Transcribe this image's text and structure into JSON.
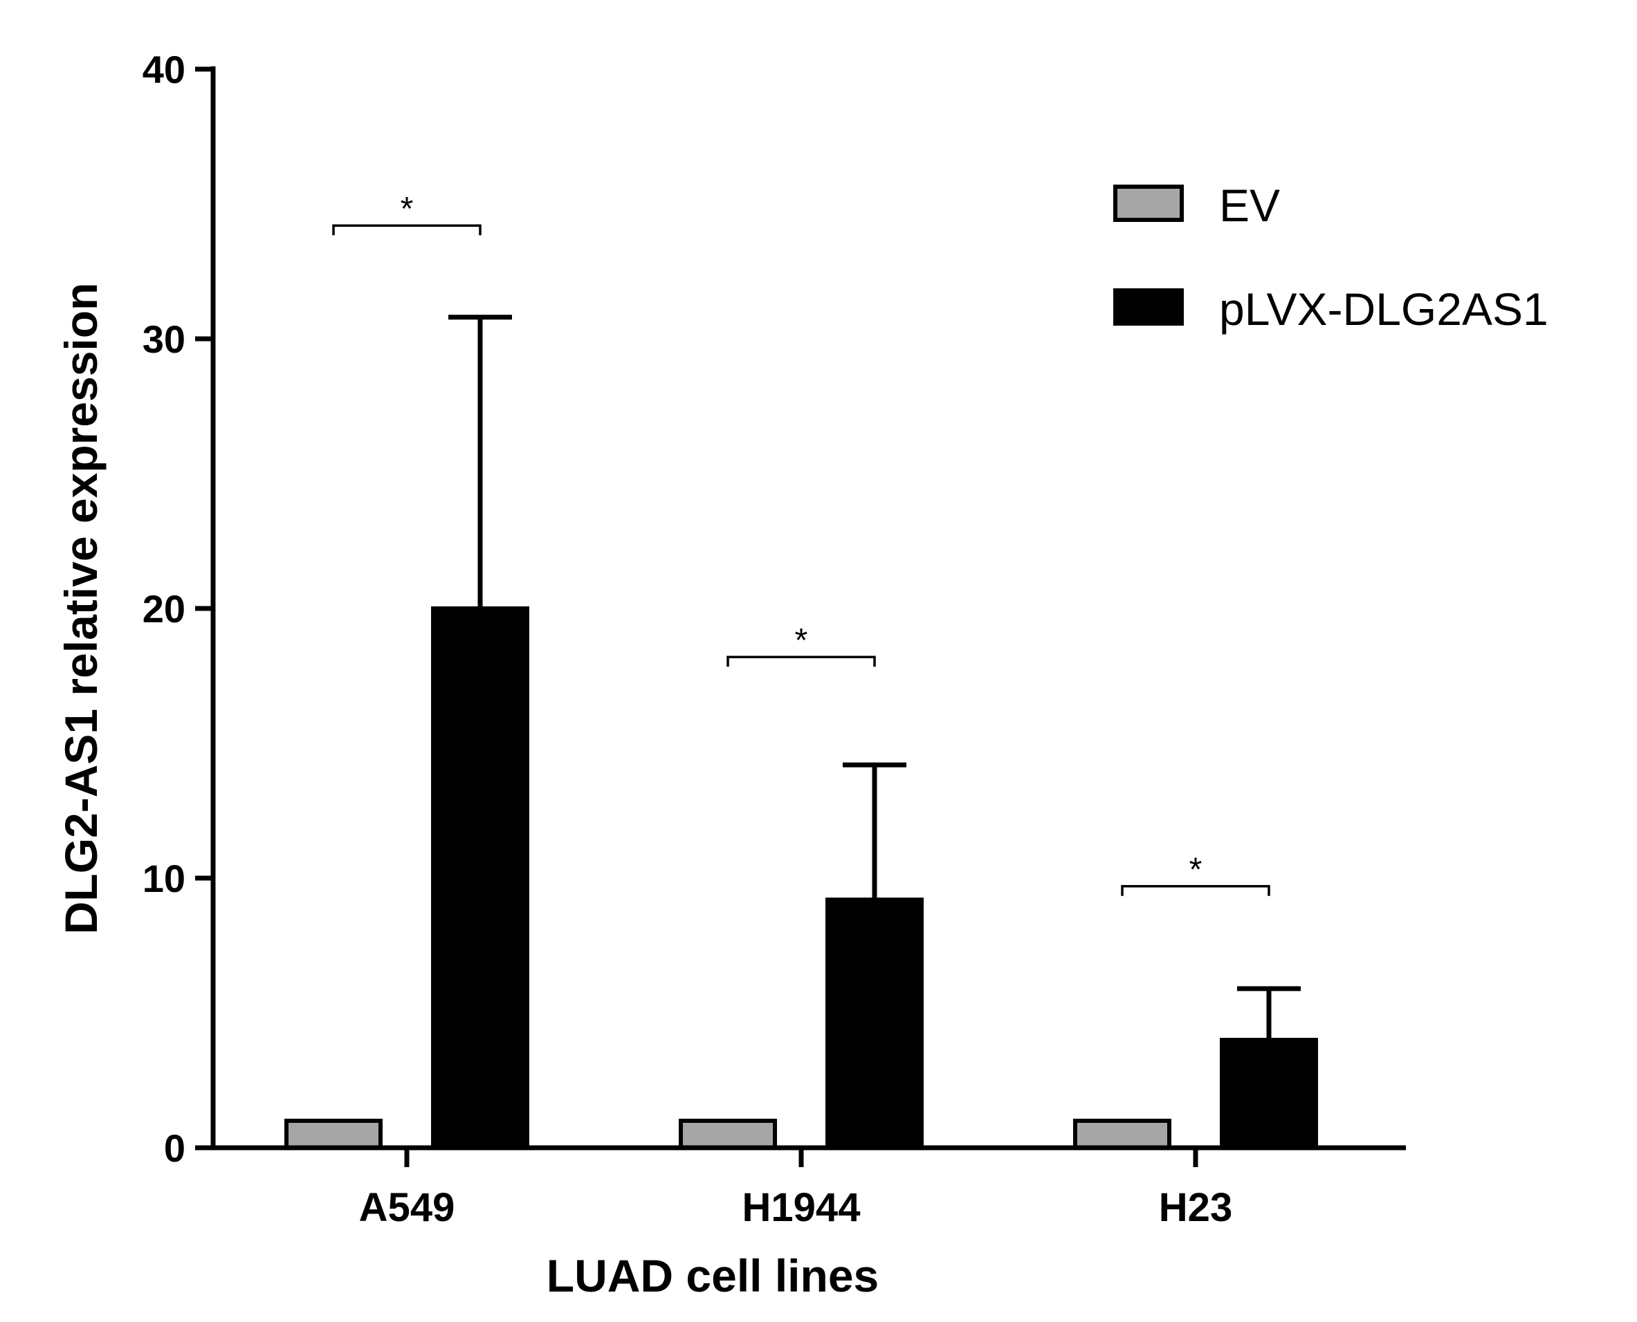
{
  "chart_data": {
    "type": "bar",
    "title": "",
    "xlabel": "LUAD cell lines",
    "ylabel": "DLG2-AS1 relative expression",
    "ylim": [
      0,
      40
    ],
    "yticks": [
      0,
      10,
      20,
      30,
      40
    ],
    "categories": [
      "A549",
      "H1944",
      "H23"
    ],
    "series": [
      {
        "name": "EV",
        "values": [
          1,
          1,
          1
        ],
        "errors": [
          0,
          0,
          0
        ],
        "color": "#a6a6a6"
      },
      {
        "name": "pLVX-DLG2AS1",
        "values": [
          20,
          9.2,
          4.0
        ],
        "errors": [
          10.8,
          5.0,
          1.9
        ],
        "color": "#000000"
      }
    ],
    "significance": [
      {
        "category": "A549",
        "label": "*",
        "y": 34.2
      },
      {
        "category": "H1944",
        "label": "*",
        "y": 18.2
      },
      {
        "category": "H23",
        "label": "*",
        "y": 9.7
      }
    ],
    "legend": "top-right",
    "grid": false
  }
}
